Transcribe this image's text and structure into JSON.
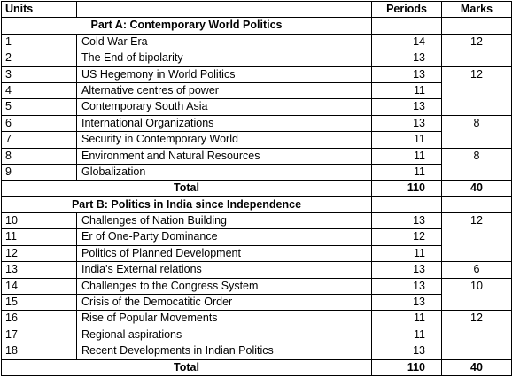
{
  "header": {
    "units": "Units",
    "periods": "Periods",
    "marks": "Marks"
  },
  "sections": [
    {
      "title": "Part A: Contemporary World Politics",
      "rows": [
        {
          "unit": "1",
          "topic": "Cold War Era",
          "periods": 14,
          "marks": 12
        },
        {
          "unit": "2",
          "topic": "The End of bipolarity",
          "periods": 13,
          "marks": null
        },
        {
          "unit": "3",
          "topic": "US Hegemony in World Politics",
          "periods": 13,
          "marks": 12
        },
        {
          "unit": "4",
          "topic": "Alternative centres of power",
          "periods": 11,
          "marks": null
        },
        {
          "unit": "5",
          "topic": "Contemporary South Asia",
          "periods": 13,
          "marks": null
        },
        {
          "unit": "6",
          "topic": "International Organizations",
          "periods": 13,
          "marks": 8
        },
        {
          "unit": "7",
          "topic": "Security in Contemporary World",
          "periods": 11,
          "marks": null
        },
        {
          "unit": "8",
          "topic": "Environment and Natural Resources",
          "periods": 11,
          "marks": 8
        },
        {
          "unit": "9",
          "topic": "Globalization",
          "periods": 11,
          "marks": null
        }
      ],
      "total": {
        "label": "Total",
        "periods": 110,
        "marks": 40
      }
    },
    {
      "title": "Part B: Politics in India since Independence",
      "rows": [
        {
          "unit": "10",
          "topic": "Challenges of Nation Building",
          "periods": 13,
          "marks": 12
        },
        {
          "unit": "11",
          "topic": "Er of One-Party Dominance",
          "periods": 12,
          "marks": null
        },
        {
          "unit": "12",
          "topic": "Politics of Planned Development",
          "periods": 11,
          "marks": null
        },
        {
          "unit": "13",
          "topic": "India's External relations",
          "periods": 13,
          "marks": 6
        },
        {
          "unit": "14",
          "topic": "Challenges to the Congress System",
          "periods": 13,
          "marks": 10
        },
        {
          "unit": "15",
          "topic": "Crisis of the Democatitic Order",
          "periods": 13,
          "marks": null
        },
        {
          "unit": "16",
          "topic": "Rise of Popular Movements",
          "periods": 11,
          "marks": 12
        },
        {
          "unit": "17",
          "topic": "Regional aspirations",
          "periods": 11,
          "marks": null
        },
        {
          "unit": "18",
          "topic": "Recent Developments in Indian Politics",
          "periods": 13,
          "marks": null
        }
      ],
      "total": {
        "label": "Total",
        "periods": 110,
        "marks": 40
      }
    }
  ]
}
